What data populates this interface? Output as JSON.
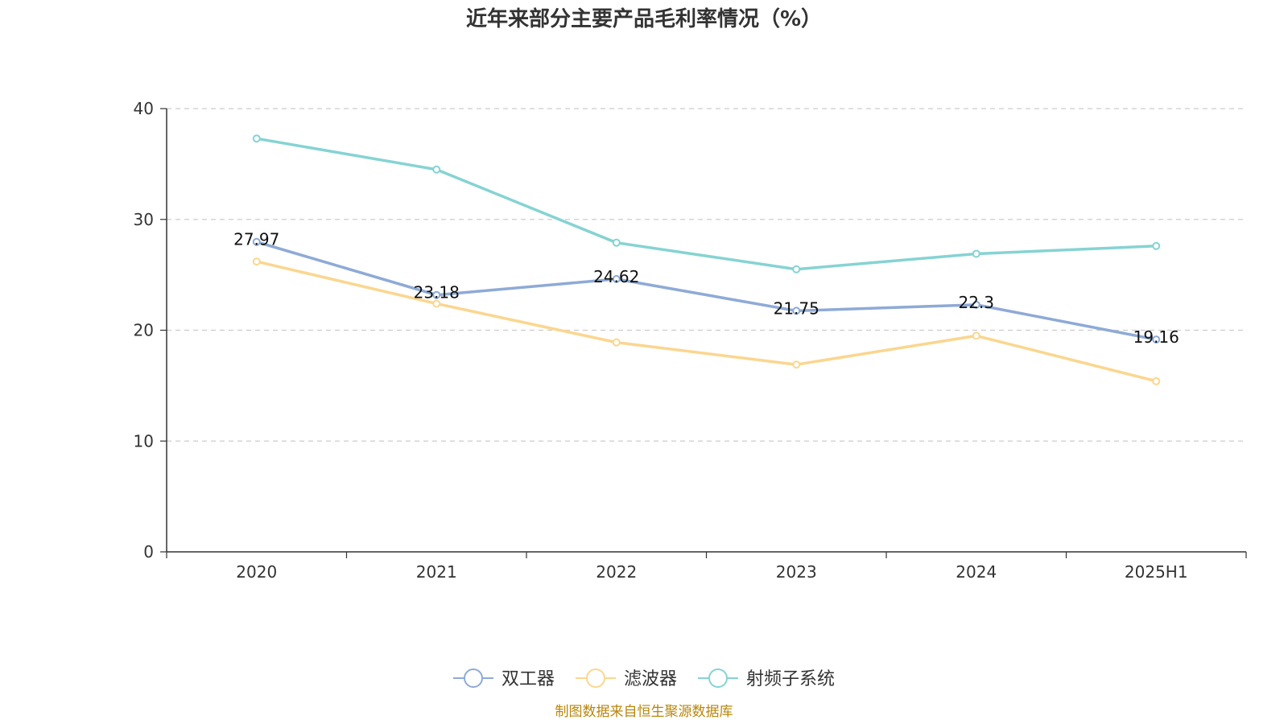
{
  "chart_data": {
    "type": "line",
    "title": "近年来部分主要产品毛利率情况（%）",
    "categories": [
      "2020",
      "2021",
      "2022",
      "2023",
      "2024",
      "2025H1"
    ],
    "ylim": [
      0,
      40
    ],
    "yticks": [
      "0",
      "10",
      "20",
      "30",
      "40"
    ],
    "grid": true,
    "legend_position": "bottom",
    "series": [
      {
        "name": "双工器",
        "color": "#8eaad6",
        "values": [
          27.97,
          23.18,
          24.62,
          21.75,
          22.3,
          19.16
        ],
        "labels": [
          "27.97",
          "23.18",
          "24.62",
          "21.75",
          "22.3",
          "19.16"
        ]
      },
      {
        "name": "滤波器",
        "color": "#fbd68f",
        "values": [
          26.2,
          22.4,
          18.9,
          16.9,
          19.5,
          15.4
        ]
      },
      {
        "name": "射频子系统",
        "color": "#86d3d3",
        "values": [
          37.3,
          34.5,
          27.9,
          25.5,
          26.9,
          27.6
        ]
      }
    ]
  },
  "source": "制图数据来自恒生聚源数据库"
}
